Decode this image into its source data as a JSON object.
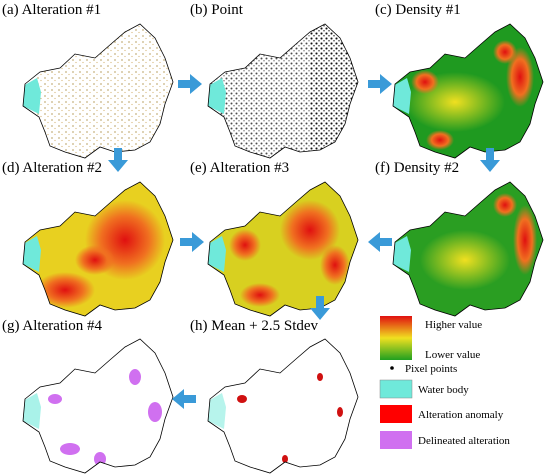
{
  "panels": [
    {
      "label": "(a) Alteration #1"
    },
    {
      "label": "(b) Point"
    },
    {
      "label": "(c) Density #1"
    },
    {
      "label": "(d) Alteration #2"
    },
    {
      "label": "(e) Alteration #3"
    },
    {
      "label": "(f) Density #2"
    },
    {
      "label": "(g) Alteration #4"
    },
    {
      "label": "(h) Mean + 2.5 Stdev"
    }
  ],
  "legend": {
    "higher": "Higher value",
    "lower": "Lower value",
    "points": "Pixel points",
    "water": "Water body",
    "anomaly": "Alteration anomaly",
    "delineated": "Delineated alteration"
  }
}
